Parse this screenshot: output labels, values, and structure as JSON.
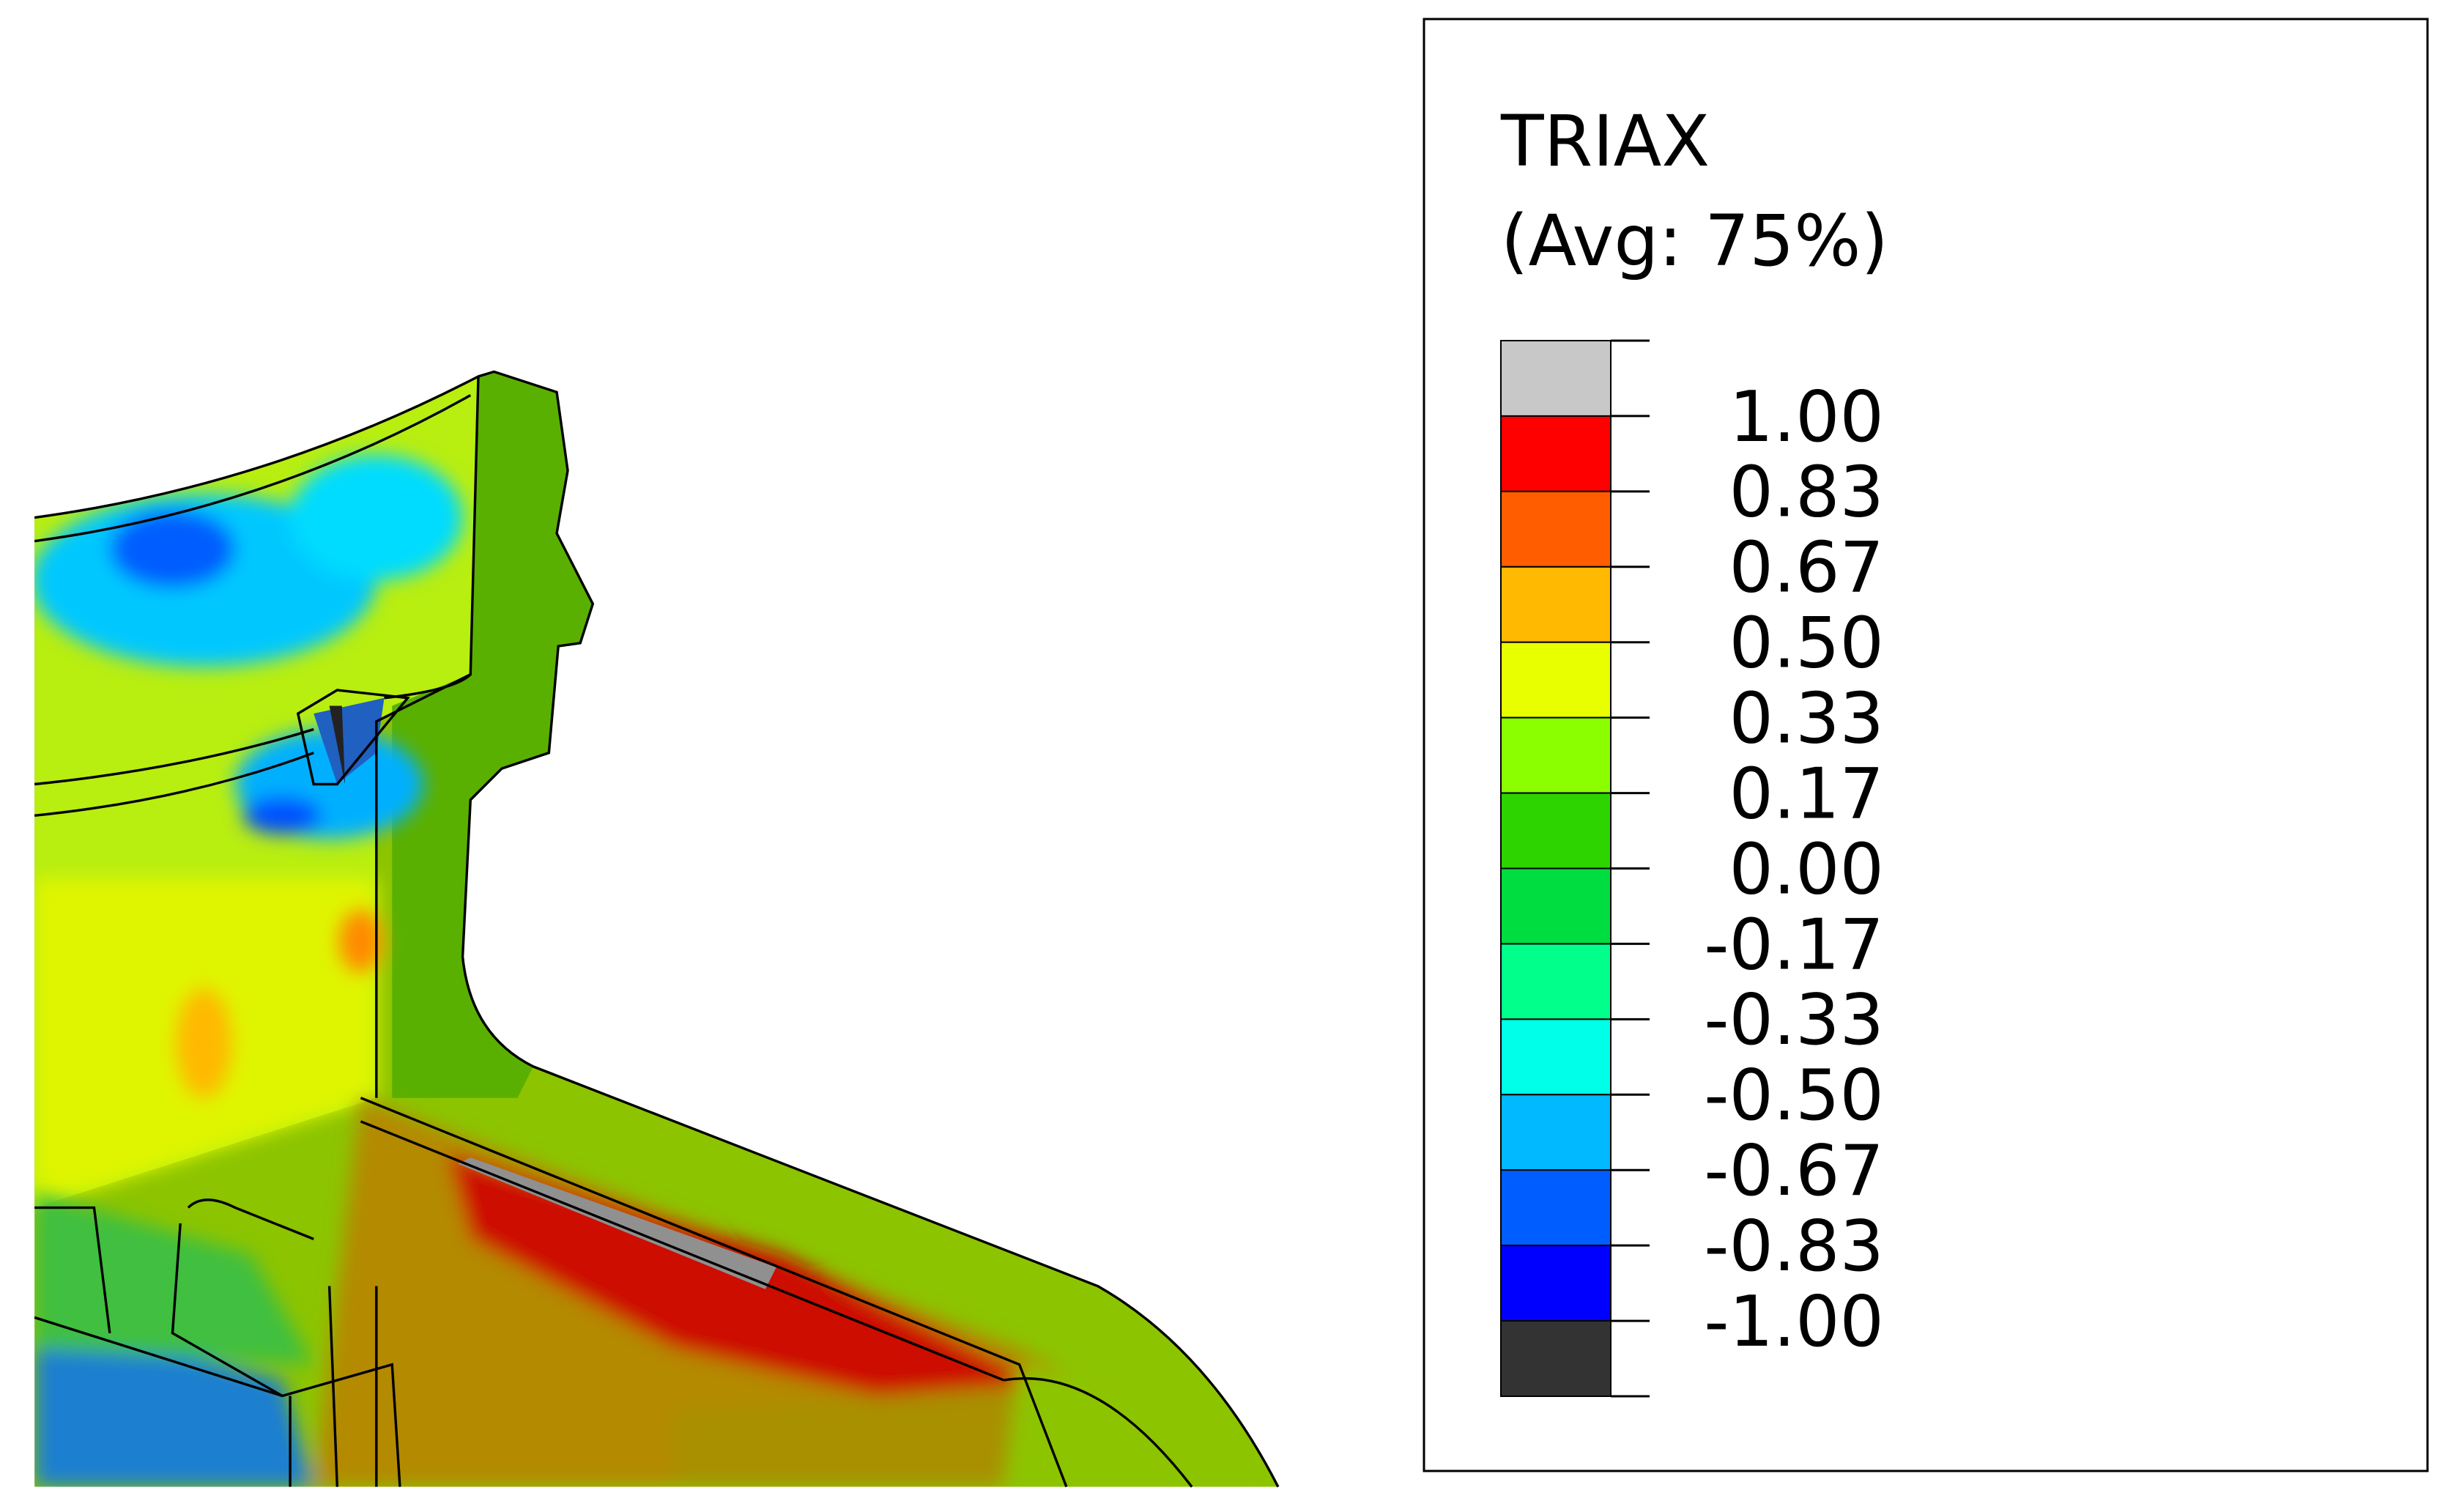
{
  "legend": {
    "title": "TRIAX",
    "subtitle": "(Avg: 75%)",
    "labels": [
      "1.00",
      "0.83",
      "0.67",
      "0.50",
      "0.33",
      "0.17",
      "0.00",
      "-0.17",
      "-0.33",
      "-0.50",
      "-0.67",
      "-0.83",
      "-1.00"
    ],
    "colors": [
      "#c8c8c8",
      "#ff0000",
      "#ff5d00",
      "#ffb900",
      "#e8ff00",
      "#8bff00",
      "#2ed400",
      "#00dd40",
      "#00ff8b",
      "#00ffe8",
      "#00b9ff",
      "#005dff",
      "#0000ff",
      "#333333"
    ]
  }
}
